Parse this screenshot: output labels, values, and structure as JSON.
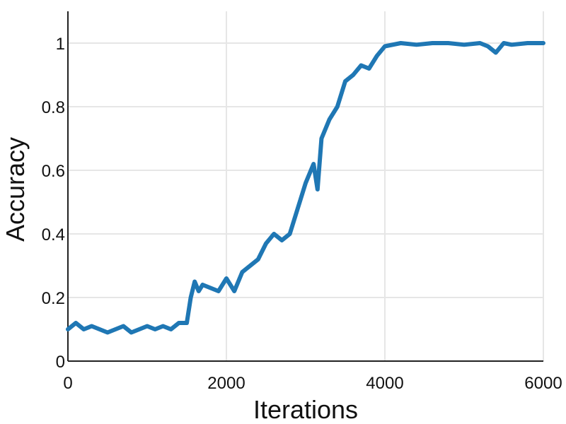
{
  "chart_data": {
    "type": "line",
    "title": "",
    "xlabel": "Iterations",
    "ylabel": "Accuracy",
    "xlim": [
      0,
      6000
    ],
    "ylim": [
      0,
      1.1
    ],
    "xticks": [
      0,
      2000,
      4000,
      6000
    ],
    "xtick_labels": [
      "0",
      "2000",
      "4000",
      "6000"
    ],
    "yticks": [
      0,
      0.2,
      0.4,
      0.6,
      0.8,
      1.0
    ],
    "ytick_labels": [
      "0",
      "0.2",
      "0.4",
      "0.6",
      "0.8",
      "1"
    ],
    "grid": true,
    "legend": "none",
    "series": [
      {
        "color": "#1f77b4",
        "x": [
          0,
          100,
          200,
          300,
          400,
          500,
          600,
          700,
          800,
          900,
          1000,
          1100,
          1200,
          1300,
          1400,
          1500,
          1550,
          1600,
          1650,
          1700,
          1800,
          1900,
          2000,
          2100,
          2200,
          2300,
          2400,
          2500,
          2600,
          2700,
          2800,
          2900,
          3000,
          3100,
          3150,
          3200,
          3300,
          3400,
          3500,
          3600,
          3700,
          3800,
          3900,
          4000,
          4200,
          4400,
          4600,
          4800,
          5000,
          5200,
          5300,
          5400,
          5500,
          5600,
          5800,
          6000
        ],
        "y": [
          0.1,
          0.12,
          0.1,
          0.11,
          0.1,
          0.09,
          0.1,
          0.11,
          0.09,
          0.1,
          0.11,
          0.1,
          0.11,
          0.1,
          0.12,
          0.12,
          0.2,
          0.25,
          0.22,
          0.24,
          0.23,
          0.22,
          0.26,
          0.22,
          0.28,
          0.3,
          0.32,
          0.37,
          0.4,
          0.38,
          0.4,
          0.48,
          0.56,
          0.62,
          0.54,
          0.7,
          0.76,
          0.8,
          0.88,
          0.9,
          0.93,
          0.92,
          0.96,
          0.99,
          1.0,
          0.995,
          1.0,
          1.0,
          0.995,
          1.0,
          0.99,
          0.97,
          1.0,
          0.995,
          1.0,
          1.0
        ]
      }
    ]
  }
}
